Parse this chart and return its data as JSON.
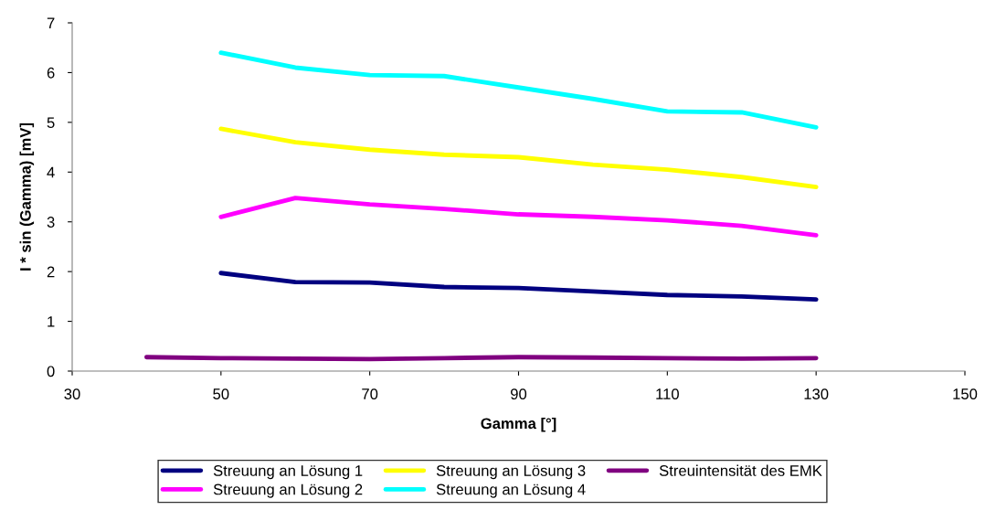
{
  "chart_data": {
    "type": "line",
    "xlabel": "Gamma [°]",
    "ylabel": "I * sin (Gamma) [mV]",
    "xlim": [
      30,
      150
    ],
    "xticks": [
      30,
      50,
      70,
      90,
      110,
      130,
      150
    ],
    "ylim": [
      0,
      7
    ],
    "yticks": [
      0,
      1,
      2,
      3,
      4,
      5,
      6,
      7
    ],
    "grid": false,
    "legend": "bottom",
    "marker": "none",
    "line_style": "solid",
    "series": [
      {
        "name": "Streuung an Lösung 1",
        "color": "#000080",
        "x": [
          50,
          60,
          70,
          80,
          90,
          100,
          110,
          120,
          130
        ],
        "values": [
          1.97,
          1.79,
          1.78,
          1.69,
          1.67,
          1.6,
          1.53,
          1.5,
          1.44
        ]
      },
      {
        "name": "Streuung an Lösung 2",
        "color": "#ff00ff",
        "x": [
          50,
          60,
          70,
          80,
          90,
          100,
          110,
          120,
          130
        ],
        "values": [
          3.1,
          3.48,
          3.35,
          3.26,
          3.15,
          3.1,
          3.03,
          2.92,
          2.73
        ]
      },
      {
        "name": "Streuung an Lösung 3",
        "color": "#ffff00",
        "x": [
          50,
          60,
          70,
          80,
          90,
          100,
          110,
          120,
          130
        ],
        "values": [
          4.87,
          4.6,
          4.45,
          4.35,
          4.3,
          4.15,
          4.05,
          3.9,
          3.7
        ]
      },
      {
        "name": "Streuung an Lösung 4",
        "color": "#00ffff",
        "x": [
          50,
          60,
          70,
          80,
          90,
          100,
          110,
          120,
          130
        ],
        "values": [
          6.4,
          6.1,
          5.95,
          5.93,
          5.7,
          5.47,
          5.22,
          5.2,
          4.9
        ]
      },
      {
        "name": "Streuintensität des EMK",
        "color": "#800080",
        "x": [
          40,
          50,
          60,
          70,
          80,
          90,
          100,
          110,
          120,
          130
        ],
        "values": [
          0.28,
          0.26,
          0.25,
          0.24,
          0.26,
          0.28,
          0.27,
          0.26,
          0.25,
          0.26
        ]
      }
    ]
  }
}
